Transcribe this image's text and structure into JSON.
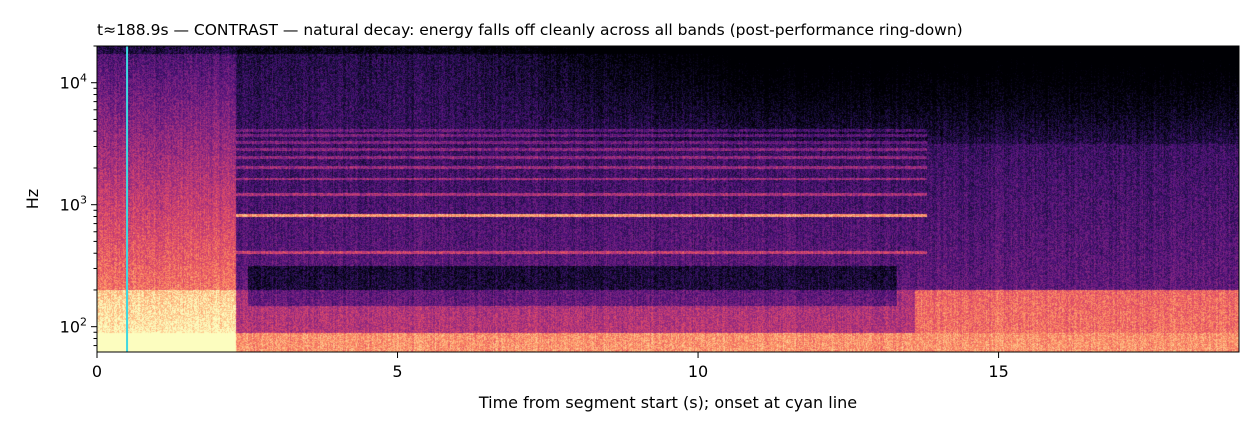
{
  "chart_data": {
    "type": "heatmap",
    "title": "t≈188.9s  —  CONTRAST — natural decay: energy falls off cleanly across all bands (post-performance ring-down)",
    "xlabel": "Time from segment start (s); onset at cyan line",
    "ylabel": "Hz",
    "y_scale": "log",
    "xlim": [
      0,
      19
    ],
    "ylim": [
      62,
      20000
    ],
    "x_ticks": [
      {
        "value": 0,
        "label": "0"
      },
      {
        "value": 5,
        "label": "5"
      },
      {
        "value": 10,
        "label": "10"
      },
      {
        "value": 15,
        "label": "15"
      }
    ],
    "y_ticks": [
      {
        "value": 100,
        "base": "10",
        "exp": "2"
      },
      {
        "value": 1000,
        "base": "10",
        "exp": "3"
      },
      {
        "value": 10000,
        "base": "10",
        "exp": "4"
      }
    ],
    "onset_line": {
      "x": 0.5,
      "color": "#3fd8e0"
    },
    "colormap": "magma",
    "grid": false,
    "legend": "none",
    "features": {
      "harmonic_bands_hz": [
        410,
        820,
        1230,
        1640,
        2050,
        2460,
        2870,
        3280,
        3700,
        4100
      ],
      "strong_partial_hz": 820,
      "sustain_end_s": 13.8,
      "broadband_attack_s": [
        0,
        2.3
      ]
    }
  }
}
